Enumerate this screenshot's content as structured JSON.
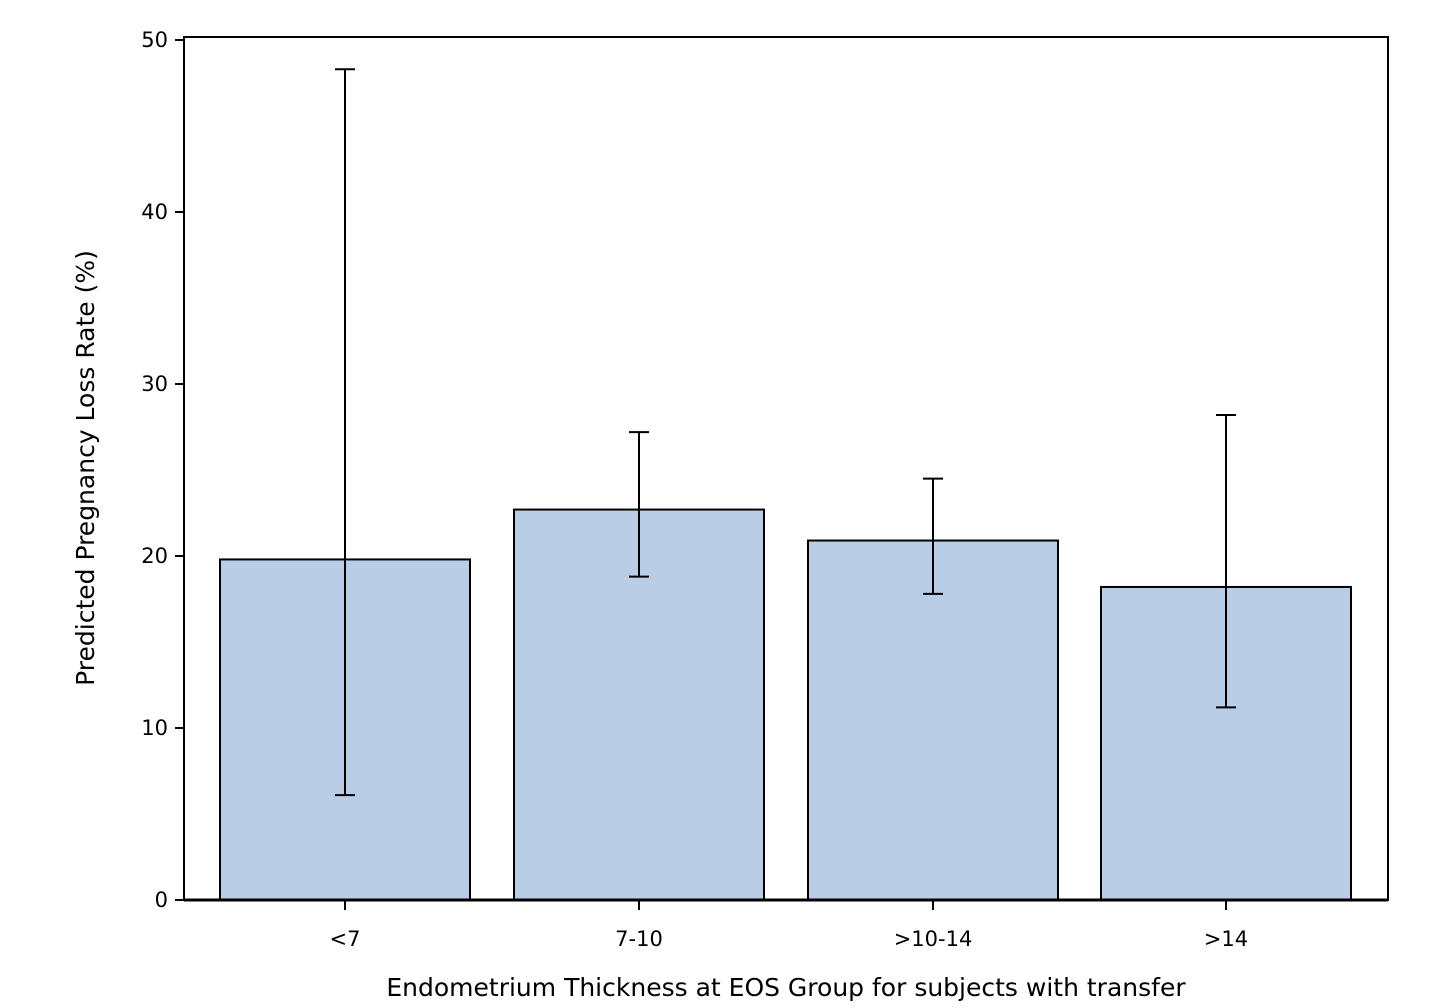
{
  "chart_data": {
    "type": "bar",
    "title": "",
    "xlabel": "Endometrium Thickness at EOS Group for subjects with transfer",
    "ylabel": "Predicted Pregnancy Loss Rate (%)",
    "categories": [
      "<7",
      "7-10",
      ">10-14",
      ">14"
    ],
    "values": [
      19.8,
      22.7,
      20.9,
      18.2
    ],
    "error_low": [
      6.1,
      18.8,
      17.8,
      11.2
    ],
    "error_high": [
      48.3,
      27.2,
      24.5,
      28.2
    ],
    "ylim": [
      0,
      50
    ],
    "yticks": [
      0,
      10,
      20,
      30,
      40,
      50
    ],
    "bar_color": "#b9cee6",
    "grid": false,
    "legend": "none"
  }
}
